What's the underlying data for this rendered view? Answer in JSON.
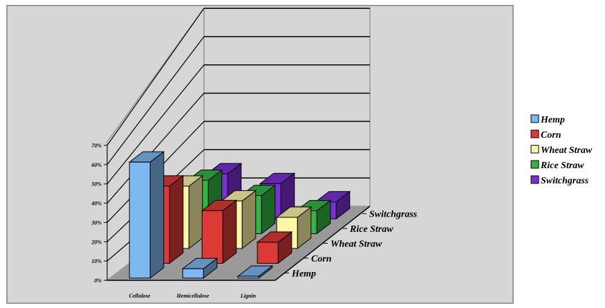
{
  "chart_data": {
    "type": "bar",
    "subtype": "3d-column",
    "categories": [
      "Cellulose",
      "Hemicellulose",
      "Lignin"
    ],
    "series": [
      {
        "name": "Hemp",
        "values": [
          62,
          5,
          1
        ],
        "color": "#7db8f0"
      },
      {
        "name": "Corn",
        "values": [
          44,
          30,
          12
        ],
        "color": "#dd3a36"
      },
      {
        "name": "Wheat Straw",
        "values": [
          38,
          29,
          19
        ],
        "color": "#fdf6a3"
      },
      {
        "name": "Rice Straw",
        "values": [
          35,
          25,
          15
        ],
        "color": "#33b545"
      },
      {
        "name": "Switchgrass",
        "values": [
          32,
          25,
          12
        ],
        "color": "#7b2fd4"
      }
    ],
    "yaxis": {
      "ticks": [
        "0%",
        "10%",
        "20%",
        "30%",
        "40%",
        "50%",
        "60%",
        "70%"
      ],
      "ylim": [
        0,
        70
      ]
    },
    "grid": true,
    "legend": "right",
    "title": "",
    "xlabel": "",
    "ylabel": ""
  }
}
